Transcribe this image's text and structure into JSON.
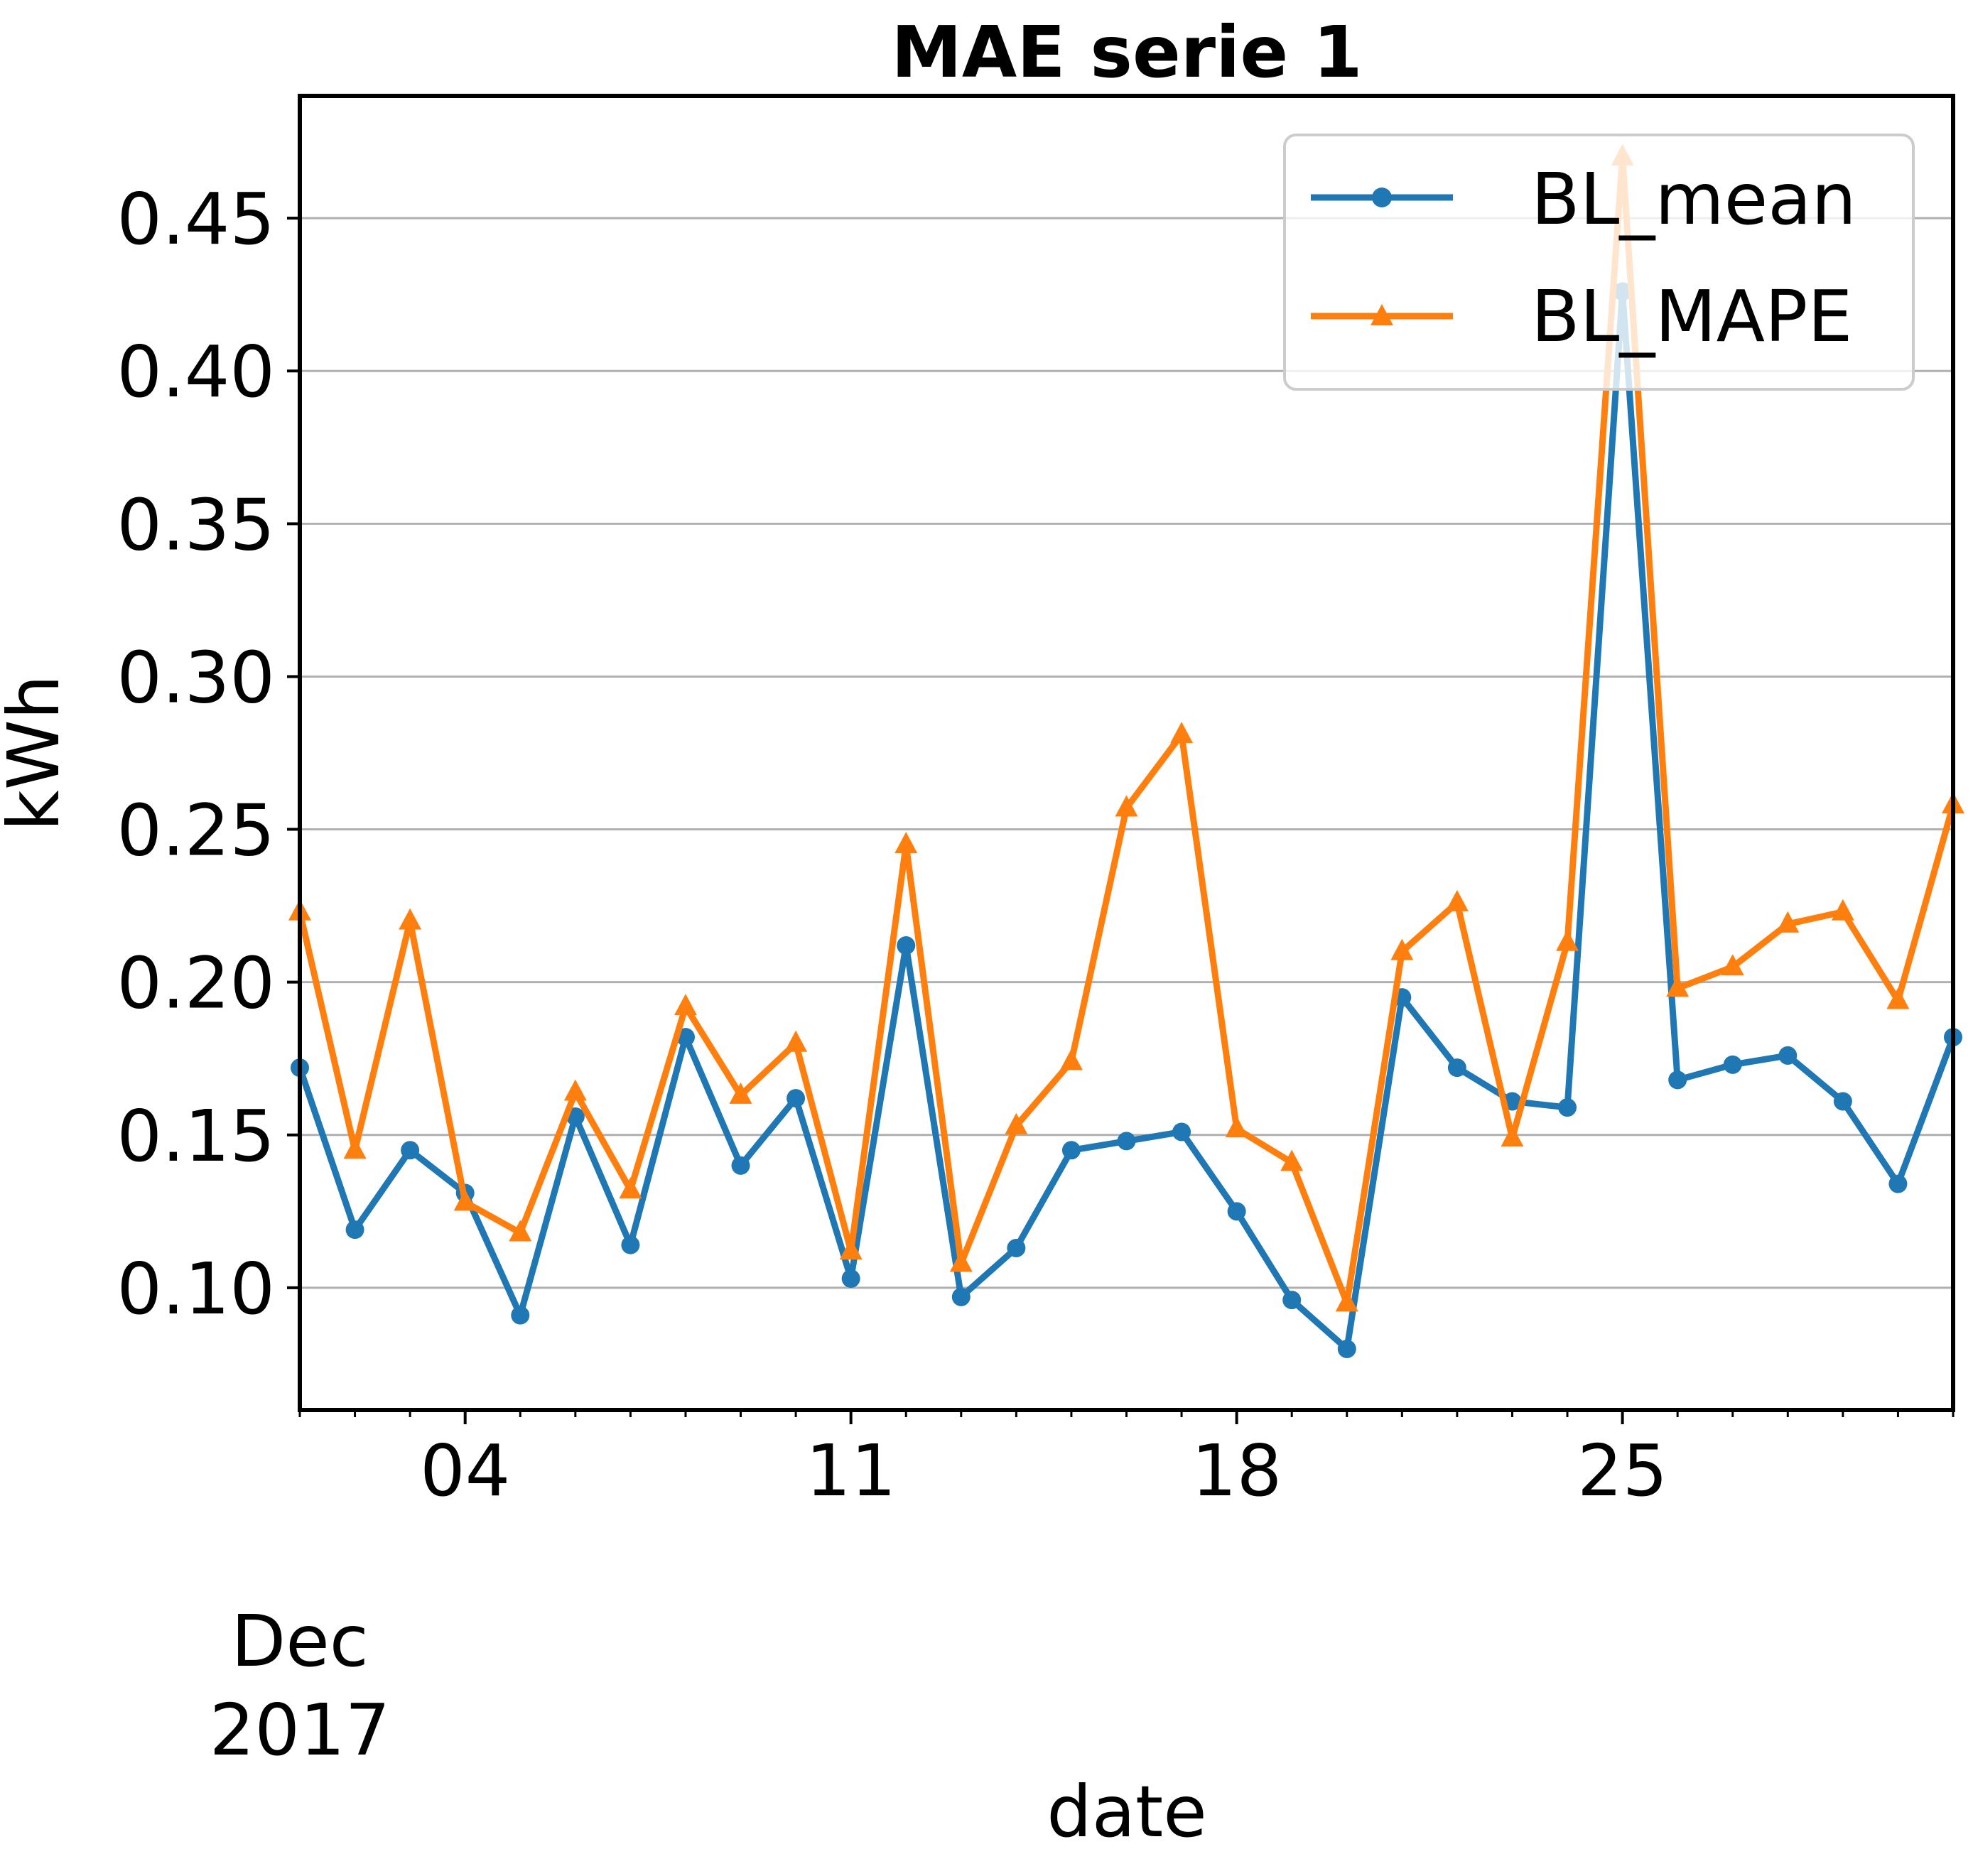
{
  "chart_data": {
    "type": "line",
    "title": "MAE serie 1",
    "xlabel": "date",
    "ylabel": "kWh",
    "x_start": "2017-12-01",
    "x_end": "2017-12-31",
    "x_ticks": [
      {
        "date": "2017-12-04",
        "label": "04"
      },
      {
        "date": "2017-12-11",
        "label": "11"
      },
      {
        "date": "2017-12-18",
        "label": "18"
      },
      {
        "date": "2017-12-25",
        "label": "25"
      }
    ],
    "x_secondary_label": [
      "Dec",
      "2017"
    ],
    "ylim": [
      0.06,
      0.49
    ],
    "y_ticks": [
      "0.10",
      "0.15",
      "0.20",
      "0.25",
      "0.30",
      "0.35",
      "0.40",
      "0.45"
    ],
    "grid": "horizontal",
    "legend_position": "top-right",
    "x": [
      "2017-12-01",
      "2017-12-02",
      "2017-12-03",
      "2017-12-04",
      "2017-12-05",
      "2017-12-06",
      "2017-12-07",
      "2017-12-08",
      "2017-12-09",
      "2017-12-10",
      "2017-12-11",
      "2017-12-12",
      "2017-12-13",
      "2017-12-14",
      "2017-12-15",
      "2017-12-16",
      "2017-12-17",
      "2017-12-18",
      "2017-12-19",
      "2017-12-20",
      "2017-12-21",
      "2017-12-22",
      "2017-12-23",
      "2017-12-24",
      "2017-12-25",
      "2017-12-26",
      "2017-12-27",
      "2017-12-28",
      "2017-12-29",
      "2017-12-30",
      "2017-12-31"
    ],
    "series": [
      {
        "name": "BL_mean",
        "color": "#1f77b4",
        "marker": "circle",
        "values": [
          0.172,
          0.119,
          0.145,
          0.131,
          0.091,
          0.156,
          0.114,
          0.182,
          0.14,
          0.162,
          0.103,
          0.212,
          0.097,
          0.113,
          0.145,
          0.148,
          0.151,
          0.125,
          0.096,
          0.08,
          0.195,
          0.172,
          0.161,
          0.159,
          0.426,
          0.168,
          0.173,
          0.176,
          0.161,
          0.134,
          0.182
        ]
      },
      {
        "name": "BL_MAPE",
        "color": "#ff7f0e",
        "marker": "triangle",
        "values": [
          0.223,
          0.145,
          0.22,
          0.128,
          0.118,
          0.164,
          0.132,
          0.192,
          0.163,
          0.18,
          0.112,
          0.245,
          0.108,
          0.153,
          0.174,
          0.257,
          0.281,
          0.152,
          0.141,
          0.095,
          0.21,
          0.226,
          0.149,
          0.213,
          0.47,
          0.198,
          0.205,
          0.219,
          0.223,
          0.194,
          0.258
        ]
      }
    ]
  }
}
